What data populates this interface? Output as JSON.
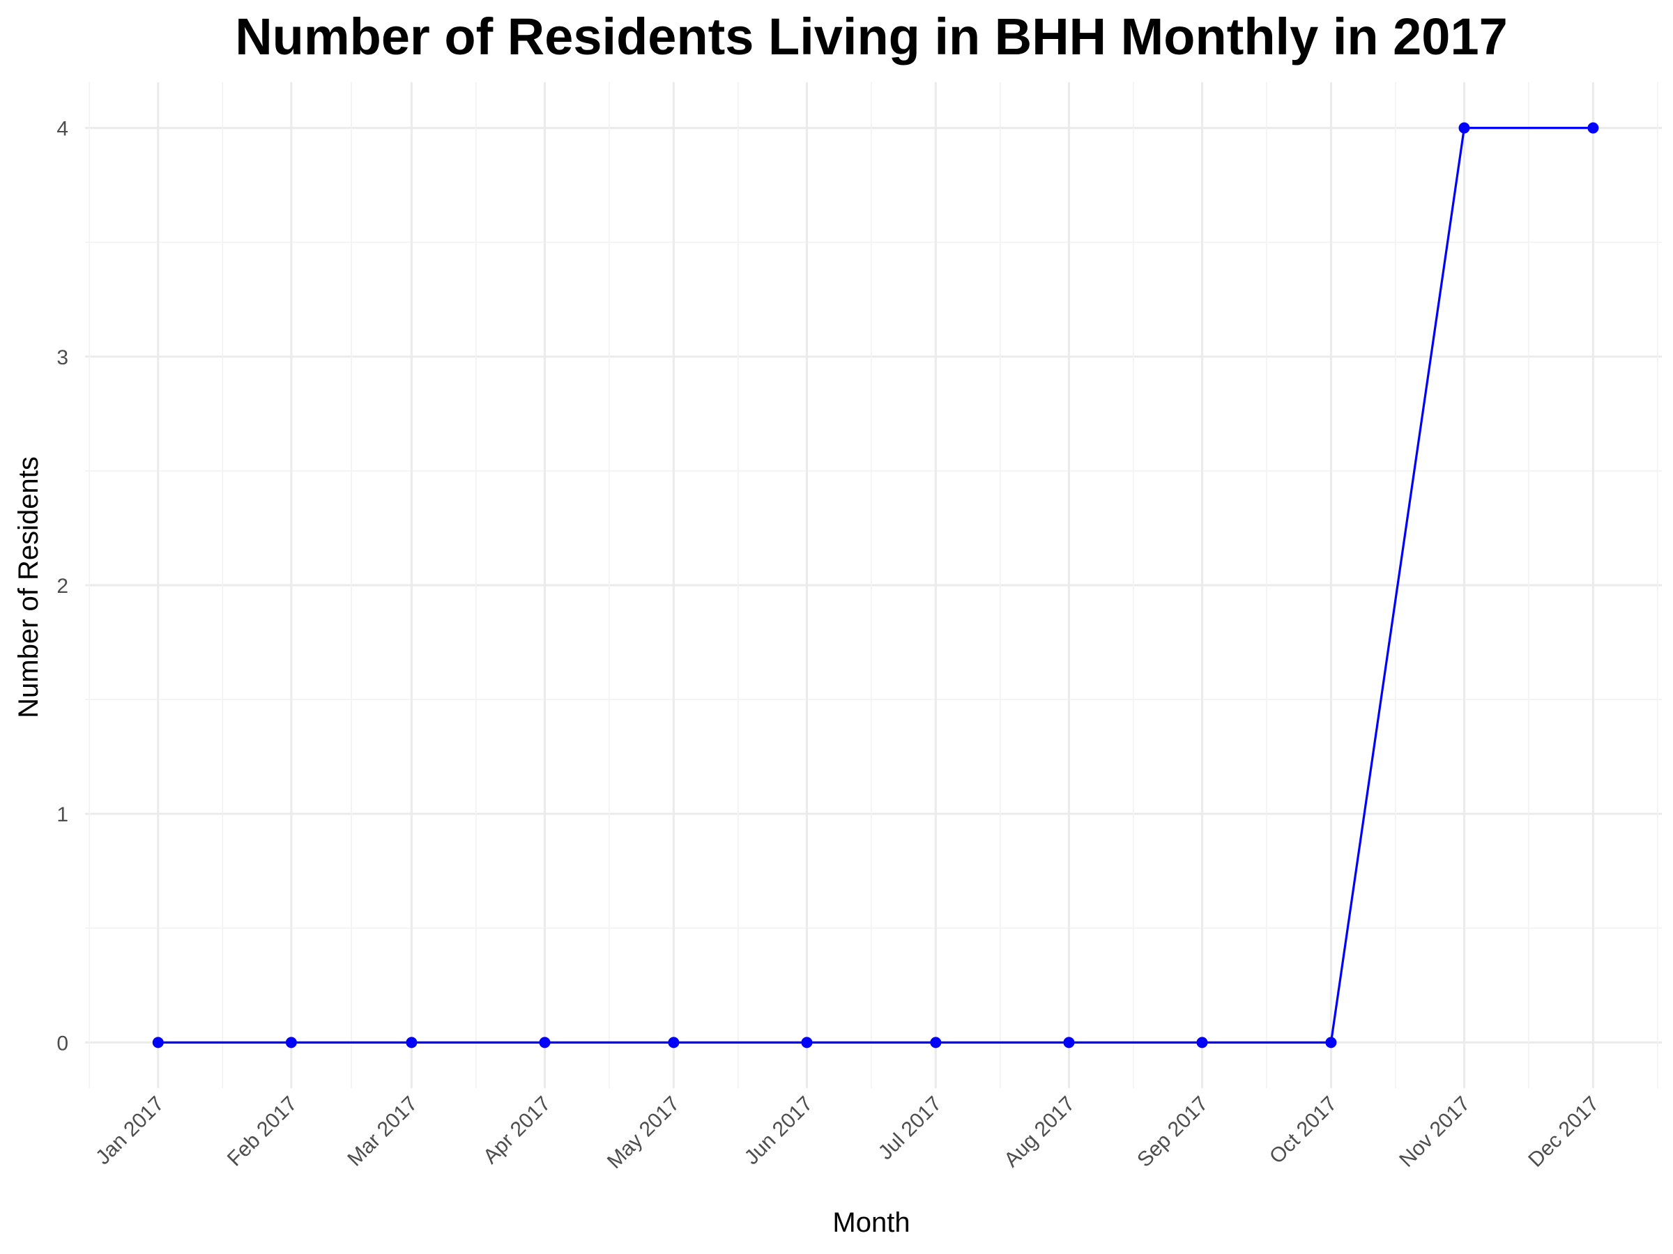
{
  "chart_data": {
    "type": "line",
    "title": "Number of Residents Living in BHH Monthly in 2017",
    "xlabel": "Month",
    "ylabel": "Number of Residents",
    "categories": [
      "Jan 2017",
      "Feb 2017",
      "Mar 2017",
      "Apr 2017",
      "May 2017",
      "Jun 2017",
      "Jul 2017",
      "Aug 2017",
      "Sep 2017",
      "Oct 2017",
      "Nov 2017",
      "Dec 2017"
    ],
    "x": [
      "2017-01-01",
      "2017-02-01",
      "2017-03-01",
      "2017-04-01",
      "2017-05-01",
      "2017-06-01",
      "2017-07-01",
      "2017-08-01",
      "2017-09-01",
      "2017-10-01",
      "2017-11-01",
      "2017-12-01"
    ],
    "values": [
      0,
      0,
      0,
      0,
      0,
      0,
      0,
      0,
      0,
      0,
      4,
      4
    ],
    "ylim": [
      -0.2,
      4.2
    ],
    "xlim": [
      "2016-12-15",
      "2017-12-17"
    ],
    "yticks": [
      0,
      1,
      2,
      3,
      4
    ],
    "grid": true,
    "legend": "none",
    "colors": {
      "line": "#0000ff",
      "points": "#0000ff"
    }
  }
}
